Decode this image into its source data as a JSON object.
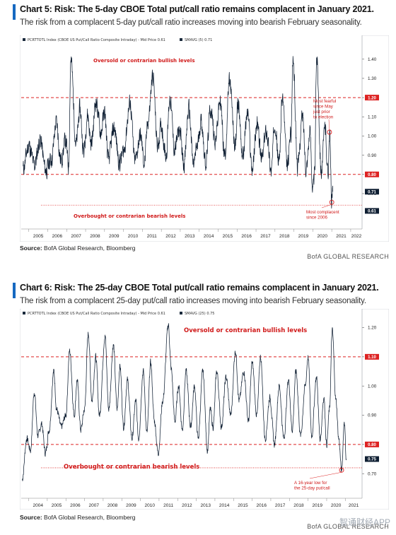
{
  "charts": [
    {
      "title": "Chart 5: Risk: The 5-day CBOE Total put/call ratio remains complacent in January  2021.",
      "subtitle": "The risk from a complacent 5-day put/call ratio increases moving into bearish February seasonality.",
      "legend": {
        "series_label": "PCRTTOTL Index  (CBOE US Put/Call Ratio Composite Intraday) - Mid Price  0.61",
        "sma_label": "SMAVG (5)  0.71"
      },
      "source_label": "Source:",
      "source_text": "BofA Global Research, Bloomberg",
      "brand": "BofA GLOBAL RESEARCH",
      "oversold_label": "Oversold or contrarian bullish levels",
      "overbought_label": "Overbought or contrarian bearish levels",
      "annotation_high": [
        "Most fearful",
        "since May",
        "just prior",
        "to election"
      ],
      "annotation_low": [
        "Most complacent",
        "since 2006"
      ],
      "badges": [
        {
          "text": "1.20",
          "value": 1.2,
          "dark": false
        },
        {
          "text": "0.80",
          "value": 0.8,
          "dark": false
        },
        {
          "text": "0.71",
          "value": 0.71,
          "dark": true
        },
        {
          "text": "0.61",
          "value": 0.61,
          "dark": true
        }
      ],
      "chart_data": {
        "type": "line",
        "x_start": 2004.6,
        "x_end": 2022.6,
        "x_ticks": [
          "2005",
          "2006",
          "2007",
          "2008",
          "2009",
          "2010",
          "2011",
          "2012",
          "2013",
          "2014",
          "2015",
          "2016",
          "2017",
          "2018",
          "2019",
          "2020",
          "2021",
          "2022"
        ],
        "ylim": [
          0.56,
          1.48
        ],
        "y_ticks": [
          "1.40",
          "1.30",
          "1.20",
          "1.10",
          "1.00",
          "0.90",
          "0.80",
          "0.70"
        ],
        "hlines": [
          1.2,
          0.8
        ],
        "dotted_hline": 0.64,
        "series": [
          {
            "name": "SMAVG (5)",
            "anchors": [
              [
                2004.7,
                0.83
              ],
              [
                2005.0,
                0.95
              ],
              [
                2005.3,
                0.85
              ],
              [
                2005.6,
                0.98
              ],
              [
                2005.9,
                0.82
              ],
              [
                2006.2,
                0.88
              ],
              [
                2006.45,
                1.07
              ],
              [
                2006.7,
                0.87
              ],
              [
                2006.95,
                0.98
              ],
              [
                2007.1,
                0.84
              ],
              [
                2007.22,
                1.4
              ],
              [
                2007.5,
                0.96
              ],
              [
                2007.7,
                1.14
              ],
              [
                2007.9,
                0.92
              ],
              [
                2008.1,
                1.11
              ],
              [
                2008.3,
                0.96
              ],
              [
                2008.55,
                1.18
              ],
              [
                2008.8,
                1.02
              ],
              [
                2009.0,
                1.12
              ],
              [
                2009.2,
                0.88
              ],
              [
                2009.5,
                1.04
              ],
              [
                2009.8,
                0.86
              ],
              [
                2010.0,
                0.92
              ],
              [
                2010.35,
                1.17
              ],
              [
                2010.6,
                0.87
              ],
              [
                2010.9,
                1.0
              ],
              [
                2011.1,
                0.86
              ],
              [
                2011.3,
                1.08
              ],
              [
                2011.55,
                1.31
              ],
              [
                2011.8,
                0.95
              ],
              [
                2012.0,
                1.05
              ],
              [
                2012.25,
                0.9
              ],
              [
                2012.45,
                1.2
              ],
              [
                2012.7,
                0.93
              ],
              [
                2012.95,
                1.03
              ],
              [
                2013.2,
                0.86
              ],
              [
                2013.45,
                1.14
              ],
              [
                2013.7,
                0.85
              ],
              [
                2013.9,
                0.95
              ],
              [
                2014.1,
                1.08
              ],
              [
                2014.35,
                0.86
              ],
              [
                2014.6,
                1.14
              ],
              [
                2014.85,
                0.98
              ],
              [
                2015.1,
                1.18
              ],
              [
                2015.35,
                0.9
              ],
              [
                2015.6,
                1.28
              ],
              [
                2015.9,
                0.95
              ],
              [
                2016.05,
                1.17
              ],
              [
                2016.3,
                0.9
              ],
              [
                2016.55,
                1.12
              ],
              [
                2016.8,
                0.83
              ],
              [
                2017.05,
                1.06
              ],
              [
                2017.3,
                0.88
              ],
              [
                2017.55,
                1.03
              ],
              [
                2017.8,
                0.82
              ],
              [
                2018.0,
                1.08
              ],
              [
                2018.2,
                0.86
              ],
              [
                2018.4,
                1.2
              ],
              [
                2018.65,
                0.84
              ],
              [
                2018.85,
                1.02
              ],
              [
                2018.95,
                1.4
              ],
              [
                2019.2,
                0.84
              ],
              [
                2019.45,
                1.1
              ],
              [
                2019.65,
                0.84
              ],
              [
                2019.85,
                1.02
              ],
              [
                2020.0,
                0.72
              ],
              [
                2020.1,
                0.8
              ],
              [
                2020.2,
                1.42
              ],
              [
                2020.45,
                0.82
              ],
              [
                2020.65,
                1.05
              ],
              [
                2020.8,
                0.8
              ],
              [
                2020.88,
                1.02
              ],
              [
                2021.0,
                0.66
              ],
              [
                2021.05,
                0.71
              ]
            ]
          }
        ]
      }
    },
    {
      "title": "Chart 6: Risk: The 25-day CBOE Total put/call ratio remains complacent in January  2021.",
      "subtitle": "The risk from a complacent 25-day put/call ratio increases moving into bearish February seasonality.",
      "legend": {
        "series_label": "PCRTTOTL Index  (CBOE US Put/Call Ratio Composite Intraday) - Mid Price  0.61",
        "sma_label": "SMAVG (25)  0.75"
      },
      "source_label": "Source:",
      "source_text": "BofA Global Research, Bloomberg",
      "brand": "BofA GLOBAL RESEARCH",
      "oversold_label": "Oversold or contrarian bullish levels",
      "overbought_label": "Overbought or contrarian bearish levels",
      "annotation_low": [
        "A 16-year low for",
        "the 25-day put/call"
      ],
      "badges": [
        {
          "text": "1.10",
          "value": 1.1,
          "dark": false
        },
        {
          "text": "0.80",
          "value": 0.8,
          "dark": false
        },
        {
          "text": "0.75",
          "value": 0.75,
          "dark": true
        }
      ],
      "chart_data": {
        "type": "line",
        "x_start": 2003.6,
        "x_end": 2021.9,
        "x_ticks": [
          "2004",
          "2005",
          "2006",
          "2007",
          "2008",
          "2009",
          "2010",
          "2011",
          "2012",
          "2013",
          "2014",
          "2015",
          "2016",
          "2017",
          "2018",
          "2019",
          "2020",
          "2021"
        ],
        "ylim": [
          0.64,
          1.24
        ],
        "y_ticks": [
          "1.20",
          "1.10",
          "1.00",
          "0.90",
          "0.80",
          "0.70"
        ],
        "hlines": [
          1.1,
          0.8
        ],
        "dotted_hline": 0.72,
        "series": [
          {
            "name": "SMAVG (25)",
            "anchors": [
              [
                2003.65,
                0.68
              ],
              [
                2003.9,
                0.82
              ],
              [
                2004.1,
                0.78
              ],
              [
                2004.3,
                0.98
              ],
              [
                2004.5,
                0.83
              ],
              [
                2004.7,
                0.87
              ],
              [
                2004.9,
                0.77
              ],
              [
                2005.1,
                0.85
              ],
              [
                2005.35,
                1.05
              ],
              [
                2005.5,
                0.92
              ],
              [
                2005.75,
                0.86
              ],
              [
                2006.0,
                0.9
              ],
              [
                2006.2,
                1.12
              ],
              [
                2006.45,
                0.9
              ],
              [
                2006.6,
                1.02
              ],
              [
                2006.8,
                0.85
              ],
              [
                2007.0,
                0.92
              ],
              [
                2007.2,
                1.18
              ],
              [
                2007.4,
                0.95
              ],
              [
                2007.6,
                1.1
              ],
              [
                2007.8,
                0.9
              ],
              [
                2008.1,
                1.17
              ],
              [
                2008.3,
                0.92
              ],
              [
                2008.55,
                1.14
              ],
              [
                2008.75,
                0.92
              ],
              [
                2008.9,
                1.07
              ],
              [
                2009.1,
                0.86
              ],
              [
                2009.3,
                1.02
              ],
              [
                2009.55,
                0.82
              ],
              [
                2009.75,
                0.95
              ],
              [
                2009.9,
                0.82
              ],
              [
                2010.15,
                1.05
              ],
              [
                2010.35,
                0.84
              ],
              [
                2010.55,
                1.08
              ],
              [
                2010.75,
                0.88
              ],
              [
                2010.95,
                0.77
              ],
              [
                2011.2,
                0.95
              ],
              [
                2011.5,
                1.21
              ],
              [
                2011.65,
                1.06
              ],
              [
                2011.85,
                0.88
              ],
              [
                2012.05,
                1.0
              ],
              [
                2012.25,
                0.85
              ],
              [
                2012.45,
                1.05
              ],
              [
                2012.7,
                0.86
              ],
              [
                2012.9,
                1.0
              ],
              [
                2013.1,
                0.82
              ],
              [
                2013.35,
                1.05
              ],
              [
                2013.6,
                0.78
              ],
              [
                2013.75,
                0.92
              ],
              [
                2013.9,
                0.86
              ],
              [
                2014.1,
                1.05
              ],
              [
                2014.35,
                0.86
              ],
              [
                2014.6,
                1.03
              ],
              [
                2014.85,
                0.9
              ],
              [
                2015.1,
                1.12
              ],
              [
                2015.3,
                0.95
              ],
              [
                2015.55,
                1.05
              ],
              [
                2015.8,
                0.88
              ],
              [
                2016.0,
                1.08
              ],
              [
                2016.25,
                0.9
              ],
              [
                2016.45,
                1.1
              ],
              [
                2016.7,
                0.82
              ],
              [
                2016.95,
                0.96
              ],
              [
                2017.2,
                0.8
              ],
              [
                2017.45,
                1.0
              ],
              [
                2017.7,
                0.82
              ],
              [
                2017.95,
                1.02
              ],
              [
                2018.15,
                0.85
              ],
              [
                2018.35,
                1.05
              ],
              [
                2018.6,
                0.83
              ],
              [
                2018.85,
                1.0
              ],
              [
                2019.0,
                1.1
              ],
              [
                2019.2,
                0.83
              ],
              [
                2019.45,
                1.03
              ],
              [
                2019.65,
                0.82
              ],
              [
                2019.85,
                0.96
              ],
              [
                2020.0,
                0.8
              ],
              [
                2020.15,
                0.92
              ],
              [
                2020.3,
                1.19
              ],
              [
                2020.5,
                0.95
              ],
              [
                2020.65,
                0.82
              ],
              [
                2020.8,
                0.71
              ],
              [
                2020.95,
                0.88
              ],
              [
                2021.05,
                0.75
              ]
            ]
          }
        ]
      }
    }
  ],
  "watermark": "智通财经APP"
}
